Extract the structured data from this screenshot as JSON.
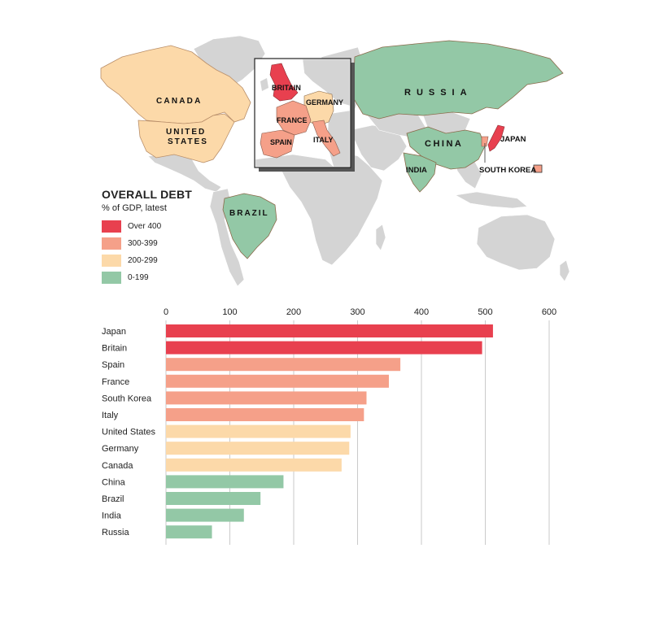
{
  "legend": {
    "title": "OVERALL DEBT",
    "subtitle": "% of GDP, latest",
    "items": [
      {
        "label": "Over 400",
        "color": "#e8404f"
      },
      {
        "label": "300-399",
        "color": "#f5a089"
      },
      {
        "label": "200-299",
        "color": "#fcd9a9"
      },
      {
        "label": "0-199",
        "color": "#93c8a6"
      }
    ]
  },
  "map_labels": {
    "canada": "CANADA",
    "united": "UNITED",
    "states": "STATES",
    "brazil": "BRAZIL",
    "russia": "RUSSIA",
    "china": "CHINA",
    "india": "INDIA",
    "japan": "JAPAN",
    "south_korea": "SOUTH KOREA",
    "britain": "BRITAIN",
    "germany": "GERMANY",
    "france": "FRANCE",
    "spain": "SPAIN",
    "italy": "ITALY"
  },
  "chart_data": {
    "type": "bar",
    "orientation": "horizontal",
    "categories": [
      "Japan",
      "Britain",
      "Spain",
      "France",
      "South Korea",
      "Italy",
      "United States",
      "Germany",
      "Canada",
      "China",
      "Brazil",
      "India",
      "Russia"
    ],
    "values": [
      512,
      495,
      367,
      349,
      314,
      310,
      289,
      287,
      275,
      184,
      148,
      122,
      72
    ],
    "colors": [
      "#e8404f",
      "#e8404f",
      "#f5a089",
      "#f5a089",
      "#f5a089",
      "#f5a089",
      "#fcd9a9",
      "#fcd9a9",
      "#fcd9a9",
      "#93c8a6",
      "#93c8a6",
      "#93c8a6",
      "#93c8a6"
    ],
    "xlim": [
      0,
      600
    ],
    "xticks": [
      0,
      100,
      200,
      300,
      400,
      500,
      600
    ],
    "grid": true
  }
}
